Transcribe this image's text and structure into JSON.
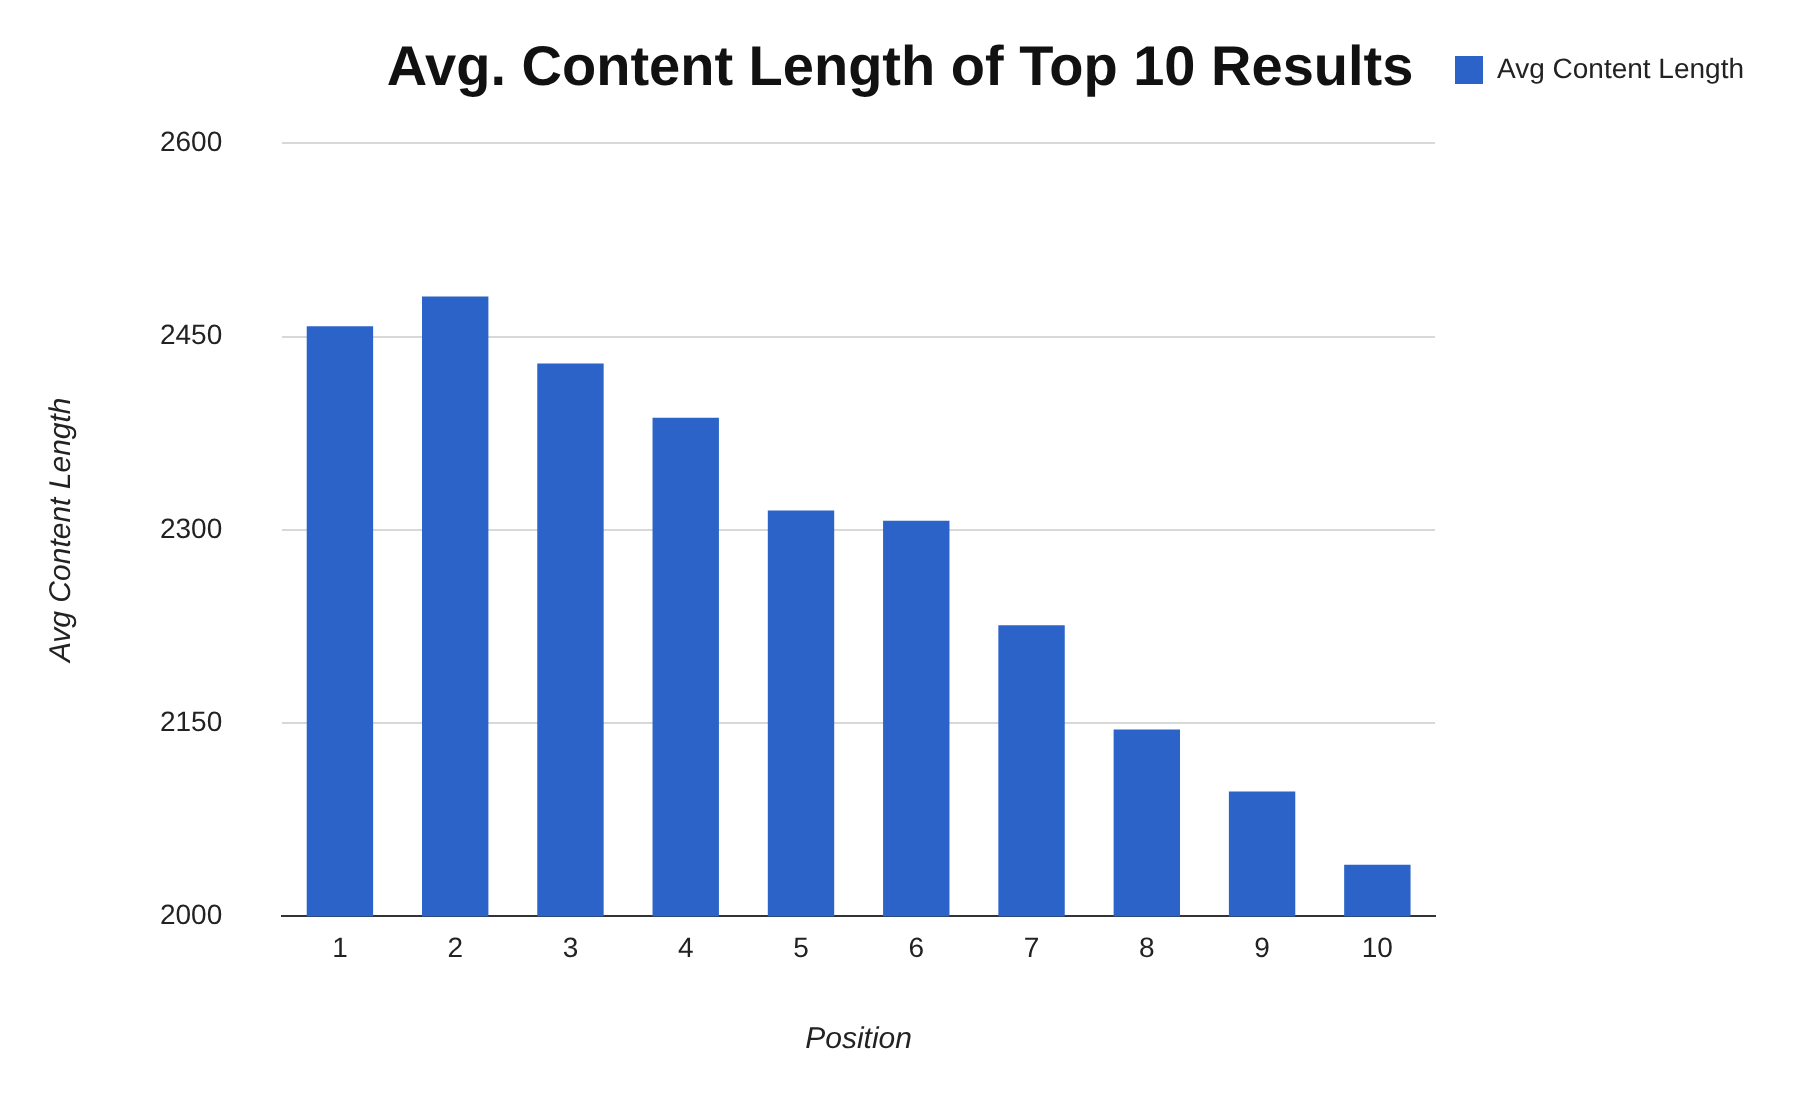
{
  "chart_data": {
    "type": "bar",
    "title": "Avg. Content Length of Top 10 Results",
    "xlabel": "Position",
    "ylabel": "Avg Content Length",
    "categories": [
      "1",
      "2",
      "3",
      "4",
      "5",
      "6",
      "7",
      "8",
      "9",
      "10"
    ],
    "series": [
      {
        "name": "Avg Content Length",
        "color": "#2b63c8",
        "values": [
          2458,
          2481,
          2429,
          2387,
          2315,
          2307,
          2226,
          2145,
          2097,
          2040
        ]
      }
    ],
    "ylim": [
      2000,
      2600
    ],
    "yticks": [
      2000,
      2150,
      2300,
      2450,
      2600
    ],
    "grid": "y",
    "legend": "top right"
  }
}
